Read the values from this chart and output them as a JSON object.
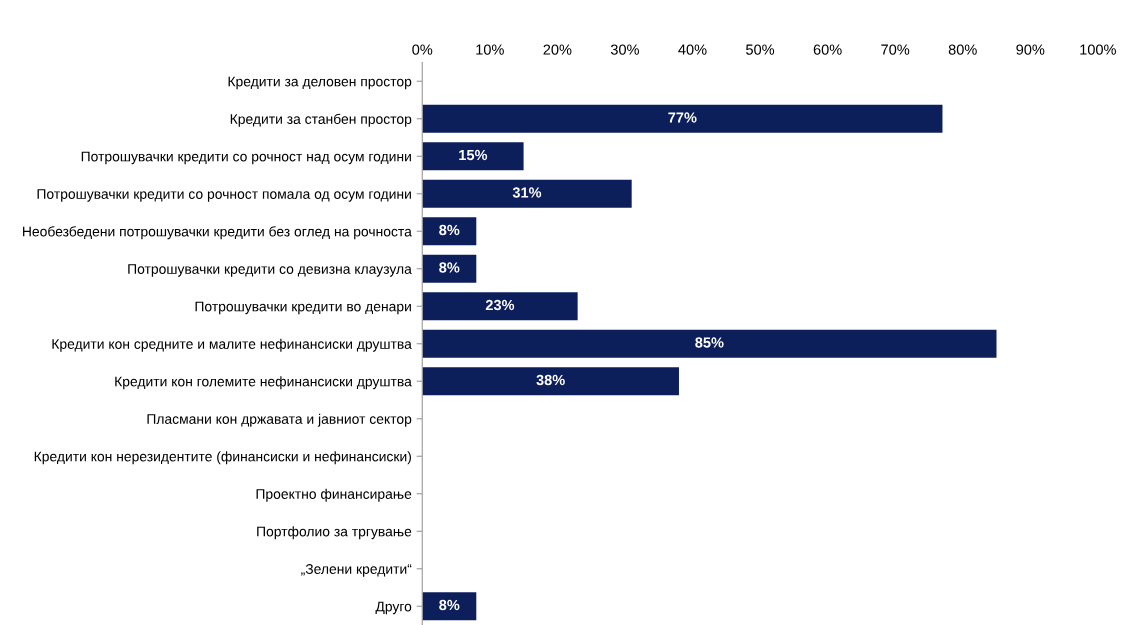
{
  "chart_data": {
    "type": "bar",
    "orientation": "horizontal",
    "categories": [
      "Кредити за деловен простор",
      "Кредити за станбен простор",
      "Потрошувачки кредити со рочност над осум години",
      "Потрошувачки кредити со рочност помала од осум години",
      "Необезбедени потрошувачки кредити без оглед на рочноста",
      "Потрошувачки кредити со девизна клаузула",
      "Потрошувачки кредити во денари",
      "Кредити кон средните и малите нефинансиски друштва",
      "Кредити кон големите нефинансиски друштва",
      "Пласмани кон државата и јавниот сектор",
      "Кредити кон нерезидентите (финансиски и нефинансиски)",
      "Проектно финансирање",
      "Портфолио за тргување",
      "„Зелени кредити“",
      "Друго"
    ],
    "values": [
      null,
      77,
      15,
      31,
      8,
      8,
      23,
      85,
      38,
      null,
      null,
      null,
      null,
      null,
      8
    ],
    "value_labels": [
      null,
      "77%",
      "15%",
      "31%",
      "8%",
      "8%",
      "23%",
      "85%",
      "38%",
      null,
      null,
      null,
      null,
      null,
      "8%"
    ],
    "color": "#0c1f5b",
    "xlim": [
      0,
      100
    ],
    "xticks": [
      {
        "value": 0,
        "label": "0%"
      },
      {
        "value": 10,
        "label": "10%"
      },
      {
        "value": 20,
        "label": "20%"
      },
      {
        "value": 30,
        "label": "30%"
      },
      {
        "value": 40,
        "label": "40%"
      },
      {
        "value": 50,
        "label": "50%"
      },
      {
        "value": 60,
        "label": "60%"
      },
      {
        "value": 70,
        "label": "70%"
      },
      {
        "value": 80,
        "label": "80%"
      },
      {
        "value": 90,
        "label": "90%"
      },
      {
        "value": 100,
        "label": "100%"
      }
    ],
    "grid": false,
    "legend": false
  }
}
